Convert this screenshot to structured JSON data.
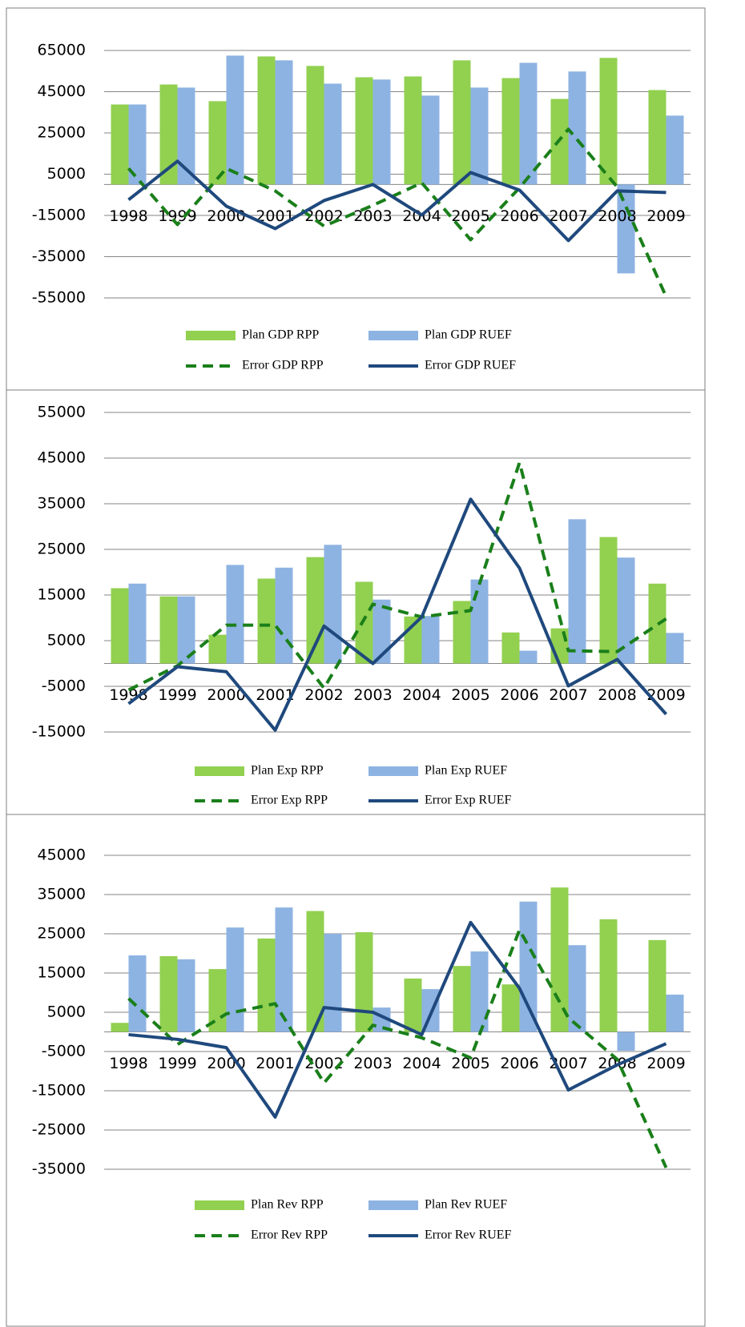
{
  "chart_data": [
    {
      "type": "combo",
      "categories": [
        "1998",
        "1999",
        "2000",
        "2001",
        "2002",
        "2003",
        "2004",
        "2005",
        "2006",
        "2007",
        "2008",
        "2009"
      ],
      "ylim": [
        -55000,
        65000
      ],
      "yticks": [
        65000,
        45000,
        25000,
        5000,
        -15000,
        -35000,
        -55000
      ],
      "grid": true,
      "series": [
        {
          "name": "Plan GDP RPP",
          "kind": "bar",
          "color": "#92d050",
          "values": [
            38800,
            48500,
            40400,
            62100,
            57500,
            52000,
            52400,
            60200,
            51600,
            41500,
            61400,
            45800
          ]
        },
        {
          "name": "Plan GDP RUEF",
          "kind": "bar",
          "color": "#8db3e2",
          "values": [
            38800,
            47000,
            62500,
            60200,
            48900,
            50900,
            43100,
            47000,
            59000,
            54800,
            -43100,
            33400
          ]
        },
        {
          "name": "Error GDP RPP",
          "kind": "line",
          "dash": true,
          "color": "#1a7f1a",
          "values": [
            7800,
            -19400,
            7800,
            -3100,
            -20200,
            -10100,
            800,
            -26800,
            -1600,
            26800,
            -1200,
            -54400
          ]
        },
        {
          "name": "Error GDP RUEF",
          "kind": "line",
          "dash": false,
          "color": "#1f497d",
          "values": [
            -7400,
            11300,
            -10500,
            -21400,
            -7800,
            0,
            -14800,
            5800,
            -2700,
            -27200,
            -3100,
            -3900
          ]
        }
      ]
    },
    {
      "type": "combo",
      "categories": [
        "1998",
        "1999",
        "2000",
        "2001",
        "2002",
        "2003",
        "2004",
        "2005",
        "2006",
        "2007",
        "2008",
        "2009"
      ],
      "ylim": [
        -15000,
        55000
      ],
      "yticks": [
        55000,
        45000,
        35000,
        25000,
        15000,
        5000,
        -5000,
        -15000
      ],
      "grid": true,
      "series": [
        {
          "name": "Plan Exp RPP",
          "kind": "bar",
          "color": "#92d050",
          "values": [
            16500,
            14700,
            6300,
            18600,
            23300,
            17900,
            10300,
            13700,
            6800,
            7700,
            27700,
            17500
          ]
        },
        {
          "name": "Plan Exp RUEF",
          "kind": "bar",
          "color": "#8db3e2",
          "values": [
            17500,
            14700,
            21600,
            21000,
            26000,
            14000,
            10400,
            18400,
            2800,
            31600,
            23200,
            6700
          ]
        },
        {
          "name": "Error Exp RPP",
          "kind": "line",
          "dash": true,
          "color": "#1a7f1a",
          "values": [
            -5800,
            -500,
            8400,
            8400,
            -5400,
            13000,
            10200,
            11600,
            44000,
            2800,
            2600,
            9800
          ]
        },
        {
          "name": "Error Exp RUEF",
          "kind": "line",
          "dash": false,
          "color": "#1f497d",
          "values": [
            -8800,
            -700,
            -1800,
            -14600,
            8200,
            0,
            10200,
            36000,
            20900,
            -4900,
            900,
            -11100
          ]
        }
      ]
    },
    {
      "type": "combo",
      "categories": [
        "1998",
        "1999",
        "2000",
        "2001",
        "2002",
        "2003",
        "2004",
        "2005",
        "2006",
        "2007",
        "2008",
        "2009"
      ],
      "ylim": [
        -35000,
        45000
      ],
      "yticks": [
        45000,
        35000,
        25000,
        15000,
        5000,
        -5000,
        -15000,
        -25000,
        -35000
      ],
      "grid": true,
      "series": [
        {
          "name": "Plan Rev RPP",
          "kind": "bar",
          "color": "#92d050",
          "values": [
            2300,
            19300,
            16000,
            23800,
            30800,
            25400,
            13600,
            16800,
            12100,
            36800,
            28700,
            23400
          ]
        },
        {
          "name": "Plan Rev RUEF",
          "kind": "bar",
          "color": "#8db3e2",
          "values": [
            19500,
            18500,
            26600,
            31700,
            25000,
            6200,
            10900,
            20500,
            33200,
            22100,
            -4800,
            9500
          ]
        },
        {
          "name": "Error Rev RPP",
          "kind": "line",
          "dash": true,
          "color": "#1a7f1a",
          "values": [
            8500,
            -3200,
            4600,
            7200,
            -13000,
            1700,
            -1500,
            -6600,
            26000,
            3600,
            -7000,
            -34600
          ]
        },
        {
          "name": "Error Rev RUEF",
          "kind": "line",
          "dash": false,
          "color": "#1f497d",
          "values": [
            -700,
            -1900,
            -4000,
            -21700,
            6200,
            5000,
            -700,
            27900,
            11100,
            -14800,
            -8400,
            -3000
          ]
        }
      ]
    }
  ]
}
